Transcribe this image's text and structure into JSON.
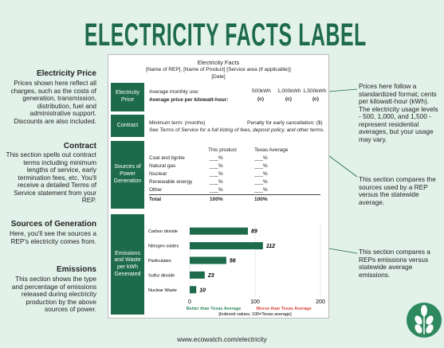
{
  "title": "ELECTRICITY FACTS LABEL",
  "label": {
    "heading": "Electricity Facts",
    "subheading": "[Name of REP], [Name of Product] [Service area (if applicable)]",
    "date": "[Date]"
  },
  "price": {
    "section": "Electricity Price",
    "usage_label": "Average monthly use:",
    "price_label": "Average price per kilowatt-hour:",
    "usage_levels": [
      "500kWh",
      "1,000kWh",
      "1,500kWh"
    ],
    "price_units": [
      "(c)",
      "(c)",
      "(c)"
    ]
  },
  "contract": {
    "section": "Contract",
    "term": "Minimum term: (months)",
    "penalty": "Penalty for early cancellation: ($)",
    "note": "See Terms of Service for a full listing of fees, deposit policy, and other terms."
  },
  "sources": {
    "section": "Sources of Power Generation",
    "columns": [
      "This product",
      "Texas Average"
    ],
    "rows": [
      [
        "Coal and lignite",
        "___%",
        "___%"
      ],
      [
        "Natural gas",
        "___%",
        "___%"
      ],
      [
        "Nuclear",
        "___%",
        "___%"
      ],
      [
        "Renewable energy",
        "___%",
        "___%"
      ],
      [
        "Other",
        "___%",
        "___%"
      ]
    ],
    "total": [
      "Total",
      "100%",
      "100%"
    ]
  },
  "chart_data": {
    "type": "bar",
    "orientation": "horizontal",
    "title": "Emissions and Waste per kWh Generated",
    "categories": [
      "Carbon dioxide",
      "Nitrogen oxides",
      "Particulates",
      "Sulfur dioxide",
      "Nuclear Waste"
    ],
    "values": [
      89,
      112,
      56,
      23,
      10
    ],
    "color": "#1d6b4b",
    "xlim": [
      0,
      200
    ],
    "xticks": [
      0,
      100,
      200
    ],
    "better_label": "Better than Texas Average",
    "worse_label": "Worse than Texas Average",
    "xlabel": "[Indexed values; 100=Texas average]"
  },
  "left_notes": [
    {
      "title": "Electricity Price",
      "text": "Prices shown here reflect all charges, such as the costs of generation, transmission, distribution, fuel and administrative support. Discounts are also included."
    },
    {
      "title": "Contract",
      "text": "This section spells out contract terms including minimum lengths of service, early termination fees, etc. You'll receive a detailed Terms of Service statement from your REP."
    },
    {
      "title": "Sources of Generation",
      "text": "Here, you'll see the sources a REP's electricity comes from."
    },
    {
      "title": "Emissions",
      "text": "This section shows the type and percentage of emissions released during electricity production by the above sources of power."
    }
  ],
  "right_notes": [
    "Prices here follow a standardized format; cents per kilowatt-hour (kWh). The electricity usage levels - 500, 1,000, and 1,500 - represent residential averages, but your usage may vary.",
    "This section compares the sources used by a REP versus the statewide average.",
    "This section compares a REPs emissions versus statewide average emissions."
  ],
  "footer": "www.ecowatch.com/electricity"
}
